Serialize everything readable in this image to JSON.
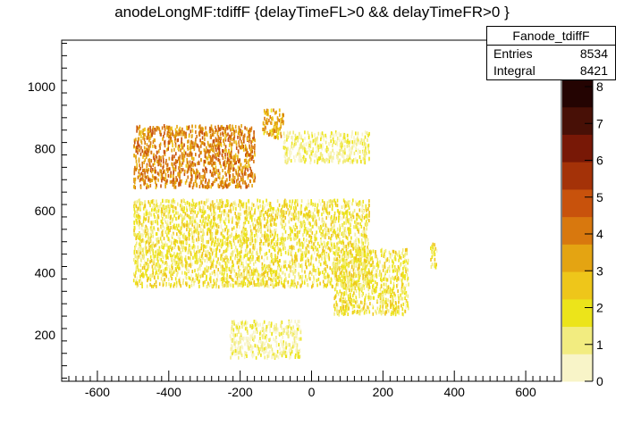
{
  "title": "anodeLongMF:tdiffF {delayTimeFL>0 && delayTimeFR>0 }",
  "stats": {
    "name": "Fanode_tdiffF",
    "rows": [
      {
        "label": "Entries",
        "value": "8534"
      },
      {
        "label": "Integral",
        "value": "8421"
      }
    ]
  },
  "chart_data": {
    "type": "heatmap",
    "title": "anodeLongMF:tdiffF {delayTimeFL>0 && delayTimeFR>0 }",
    "xlabel": "",
    "ylabel": "",
    "xlim": [
      -700,
      700
    ],
    "ylim": [
      50,
      1150
    ],
    "xticks": [
      -600,
      -400,
      -200,
      0,
      200,
      400,
      600
    ],
    "yticks": [
      200,
      400,
      600,
      800,
      1000
    ],
    "zticks": [
      0,
      1,
      2,
      3,
      4,
      5,
      6,
      7,
      8
    ],
    "zlim": [
      0,
      8
    ],
    "colorscale": [
      "#f8f4c8",
      "#f2ec80",
      "#ece41a",
      "#eec61a",
      "#e4a412",
      "#d8780e",
      "#c8520c",
      "#a43208",
      "#781806",
      "#481006",
      "#240402"
    ],
    "entries": 8534,
    "integral": 8421,
    "regions": [
      {
        "name": "upper-band",
        "xrange": [
          -500,
          -160
        ],
        "yrange": [
          680,
          880
        ],
        "level": 5
      },
      {
        "name": "upper-right-blob",
        "xrange": [
          -140,
          -80
        ],
        "yrange": [
          840,
          930
        ],
        "level": 4
      },
      {
        "name": "upper-right-scatter",
        "xrange": [
          -80,
          160
        ],
        "yrange": [
          760,
          860
        ],
        "level": 1
      },
      {
        "name": "middle-band",
        "xrange": [
          -500,
          160
        ],
        "yrange": [
          360,
          640
        ],
        "level": 2
      },
      {
        "name": "lower-diagonal",
        "xrange": [
          60,
          270
        ],
        "yrange": [
          270,
          480
        ],
        "level": 2
      },
      {
        "name": "right-isolated",
        "xrange": [
          330,
          350
        ],
        "yrange": [
          420,
          500
        ],
        "level": 2
      },
      {
        "name": "bottom-scatter",
        "xrange": [
          -230,
          -30
        ],
        "yrange": [
          130,
          250
        ],
        "level": 1
      }
    ]
  }
}
